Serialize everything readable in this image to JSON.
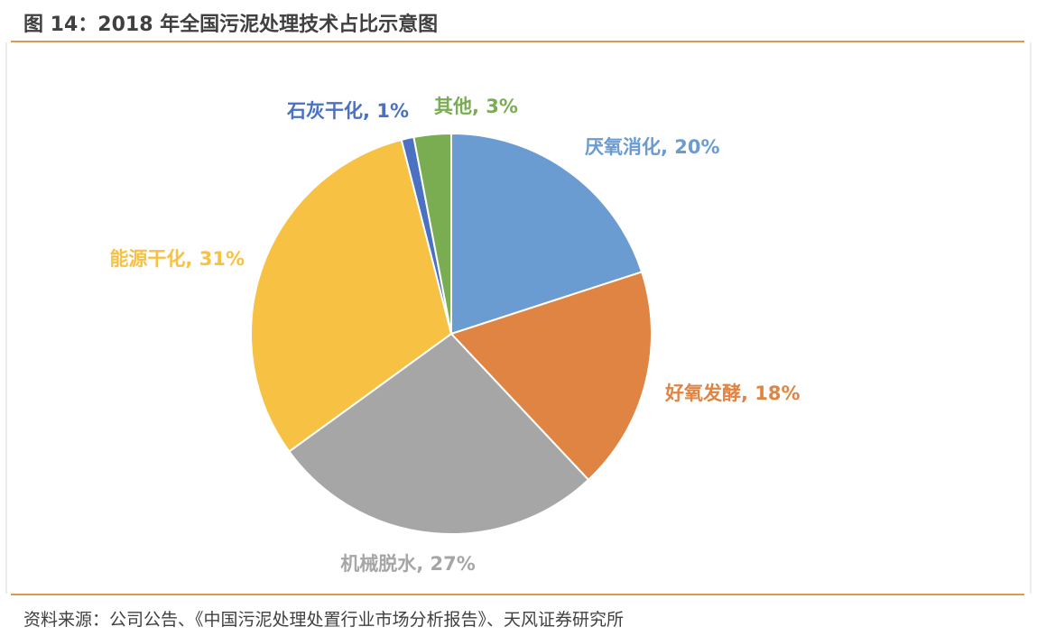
{
  "header": {
    "title": "图 14：2018 年全国污泥处理技术占比示意图"
  },
  "footer": {
    "source": "资料来源：公司公告、《中国污泥处理处置行业市场分析报告》、天风证券研究所"
  },
  "chart_data": {
    "type": "pie",
    "title": "",
    "start_angle": "12 o'clock",
    "direction": "clockwise",
    "slices": [
      {
        "label": "厌氧消化, 20%",
        "value": 20,
        "color": "#6a9bd1"
      },
      {
        "label": "好氧发酵, 18%",
        "value": 18,
        "color": "#e08443"
      },
      {
        "label": "机械脱水, 27%",
        "value": 27,
        "color": "#a6a6a6"
      },
      {
        "label": "能源干化, 31%",
        "value": 31,
        "color": "#f7c143"
      },
      {
        "label": "石灰干化, 1%",
        "value": 1,
        "color": "#4a71c2"
      },
      {
        "label": "其他, 3%",
        "value": 3,
        "color": "#7aad52"
      }
    ]
  }
}
